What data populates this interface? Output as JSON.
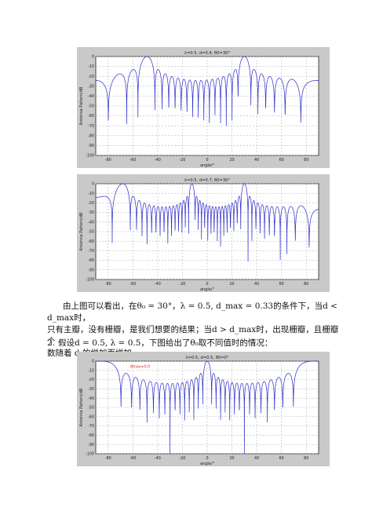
{
  "paragraph": {
    "line1": "由上图可以看出，在θ₀ = 30°，λ = 0.5, d_max = 0.33的条件下，当d < d_max时，",
    "line2": "只有主瓣，没有栅瓣，是我们想要的结果；当d > d_max时，出现栅瓣，且栅瓣个",
    "line3": "数随着 d 的增加而增加。"
  },
  "list_item": {
    "number": "2.",
    "text": "假设d = 0.5, λ = 0.5，下图给出了θ₀取不同值时的情况："
  },
  "chart_data": [
    {
      "type": "line",
      "title": "λ=0.5, d=0.4, θ0=30°",
      "xlabel": "angle/°",
      "ylabel": "Antenna Pattern/dB",
      "xlim": [
        -90,
        90
      ],
      "ylim": [
        -100,
        0
      ],
      "xticks": [
        -80,
        -60,
        -40,
        -20,
        0,
        20,
        40,
        60,
        80
      ],
      "yticks": [
        0,
        -10,
        -20,
        -30,
        -40,
        -50,
        -60,
        -70,
        -80,
        -90,
        -100
      ],
      "grid": true,
      "N": 16,
      "d": 0.4,
      "lambda": 0.5,
      "theta0": 30,
      "color": "#2b2bcc"
    },
    {
      "type": "line",
      "title": "λ=0.5, d=0.7, θ0=30°",
      "xlabel": "angle/°",
      "ylabel": "Antenna Pattern/dB",
      "xlim": [
        -90,
        90
      ],
      "ylim": [
        -100,
        0
      ],
      "xticks": [
        -80,
        -60,
        -40,
        -20,
        0,
        20,
        40,
        60,
        80
      ],
      "yticks": [
        0,
        -10,
        -20,
        -30,
        -40,
        -50,
        -60,
        -70,
        -80,
        -90,
        -100
      ],
      "grid": true,
      "N": 16,
      "d": 0.7,
      "lambda": 0.5,
      "theta0": 30,
      "color": "#2b2bcc"
    },
    {
      "type": "line",
      "title": "λ=0.5, d=0.5, θ0=0°",
      "annotation": "θmax=0.0",
      "xlabel": "angle/°",
      "ylabel": "Antenna Pattern/dB",
      "xlim": [
        -90,
        90
      ],
      "ylim": [
        -100,
        0
      ],
      "xticks": [
        -80,
        -60,
        -40,
        -20,
        0,
        20,
        40,
        60,
        80
      ],
      "yticks": [
        0,
        -10,
        -20,
        -30,
        -40,
        -50,
        -60,
        -70,
        -80,
        -90,
        -100
      ],
      "grid": true,
      "N": 16,
      "d": 0.5,
      "lambda": 0.5,
      "theta0": 0,
      "color": "#2b2bcc",
      "annotation_color": "#dd2222"
    }
  ]
}
